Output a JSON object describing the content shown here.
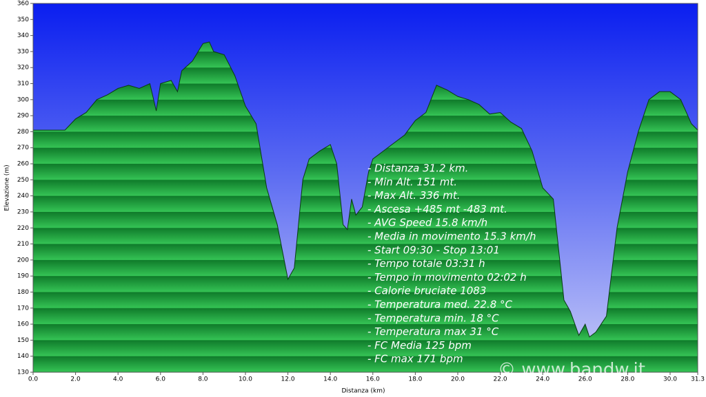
{
  "chart_data": {
    "type": "area",
    "xlabel": "Distanza  (km)",
    "ylabel": "Elevazione (m)",
    "x": [
      0,
      1.5,
      2.0,
      2.5,
      3.0,
      3.5,
      4.0,
      4.5,
      5.0,
      5.5,
      5.8,
      6.0,
      6.5,
      6.8,
      7.0,
      7.5,
      8.0,
      8.3,
      8.5,
      9.0,
      9.5,
      10.0,
      10.5,
      11.0,
      11.5,
      12.0,
      12.3,
      12.7,
      13.0,
      13.5,
      14.0,
      14.3,
      14.6,
      14.8,
      15.0,
      15.2,
      15.5,
      15.8,
      16.0,
      16.5,
      17.0,
      17.5,
      18.0,
      18.5,
      19.0,
      19.5,
      20.0,
      20.5,
      21.0,
      21.5,
      22.0,
      22.5,
      23.0,
      23.5,
      24.0,
      24.5,
      25.0,
      25.3,
      25.7,
      26.0,
      26.2,
      26.5,
      27.0,
      27.5,
      28.0,
      28.5,
      29.0,
      29.5,
      30.0,
      30.5,
      31.0,
      31.3
    ],
    "series": [
      {
        "color": "#1e9a3c",
        "values": [
          281,
          281,
          288,
          292,
          300,
          303,
          307,
          309,
          307,
          310,
          293,
          310,
          312,
          305,
          318,
          324,
          335,
          336,
          330,
          328,
          315,
          296,
          285,
          245,
          222,
          188,
          195,
          250,
          263,
          268,
          272,
          260,
          222,
          219,
          238,
          228,
          233,
          255,
          263,
          268,
          273,
          278,
          287,
          292,
          309,
          306,
          302,
          300,
          297,
          291,
          292,
          286,
          282,
          268,
          245,
          238,
          175,
          168,
          153,
          160,
          152,
          155,
          165,
          220,
          255,
          280,
          300,
          305,
          305,
          300,
          285,
          281
        ]
      }
    ],
    "xlim": [
      0,
      31.3
    ],
    "xticks": [
      {
        "value": 0,
        "label": "0.0"
      },
      {
        "value": 2,
        "label": "2.0"
      },
      {
        "value": 4,
        "label": "4.0"
      },
      {
        "value": 6,
        "label": "6.0"
      },
      {
        "value": 8,
        "label": "8.0"
      },
      {
        "value": 10,
        "label": "10.0"
      },
      {
        "value": 12,
        "label": "12.0"
      },
      {
        "value": 14,
        "label": "14.0"
      },
      {
        "value": 16,
        "label": "16.0"
      },
      {
        "value": 18,
        "label": "18.0"
      },
      {
        "value": 20,
        "label": "20.0"
      },
      {
        "value": 22,
        "label": "22.0"
      },
      {
        "value": 24,
        "label": "24.0"
      },
      {
        "value": 26,
        "label": "26.0"
      },
      {
        "value": 28,
        "label": "28.0"
      },
      {
        "value": 30,
        "label": "30.0"
      },
      31.3
    ],
    "ylim": [
      130,
      360
    ],
    "yticks": [
      130,
      140,
      150,
      160,
      170,
      180,
      190,
      200,
      210,
      220,
      230,
      240,
      250,
      260,
      270,
      280,
      290,
      300,
      310,
      320,
      330,
      340,
      350,
      360
    ],
    "annotations": [
      "- Distanza 31.2 km.",
      "- Min Alt. 151 mt.",
      "- Max Alt. 336 mt.",
      "- Ascesa +485 mt -483 mt.",
      "- AVG Speed 15.8 km/h",
      "- Media in movimento 15.3 km/h",
      "- Start 09:30 - Stop 13:01",
      "- Tempo totale 03:31 h",
      "- Tempo in movimento 02:02 h",
      "- Calorie bruciate 1083",
      "- Temperatura med. 22.8 °C",
      "- Temperatura min. 18 °C",
      "- Temperatura max 31 °C",
      "- FC Media 125 bpm",
      "- FC max 171 bpm"
    ],
    "watermark": "© www.bandw.it"
  }
}
